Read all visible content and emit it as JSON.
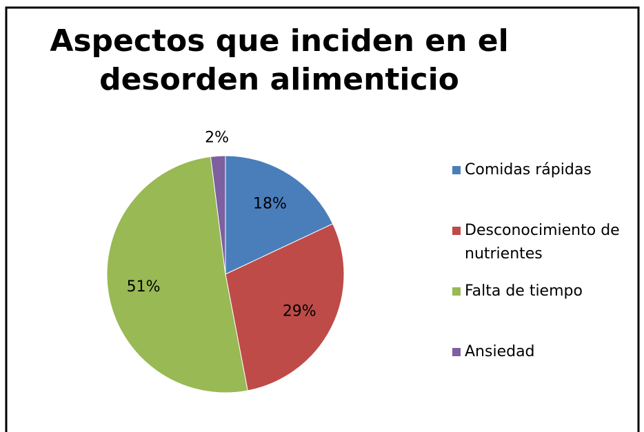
{
  "chart_data": {
    "type": "pie",
    "title": [
      "Aspectos que inciden en el",
      "desorden alimenticio"
    ],
    "categories": [
      "Comidas rápidas",
      "Desconocimiento de nutrientes",
      "Falta de tiempo",
      "Ansiedad"
    ],
    "values": [
      18,
      29,
      51,
      2
    ],
    "value_labels": [
      "18%",
      "29%",
      "51%",
      "2%"
    ],
    "colors": [
      "#4a7ebb",
      "#be4b48",
      "#98b954",
      "#7d60a0"
    ],
    "legend": "right"
  }
}
